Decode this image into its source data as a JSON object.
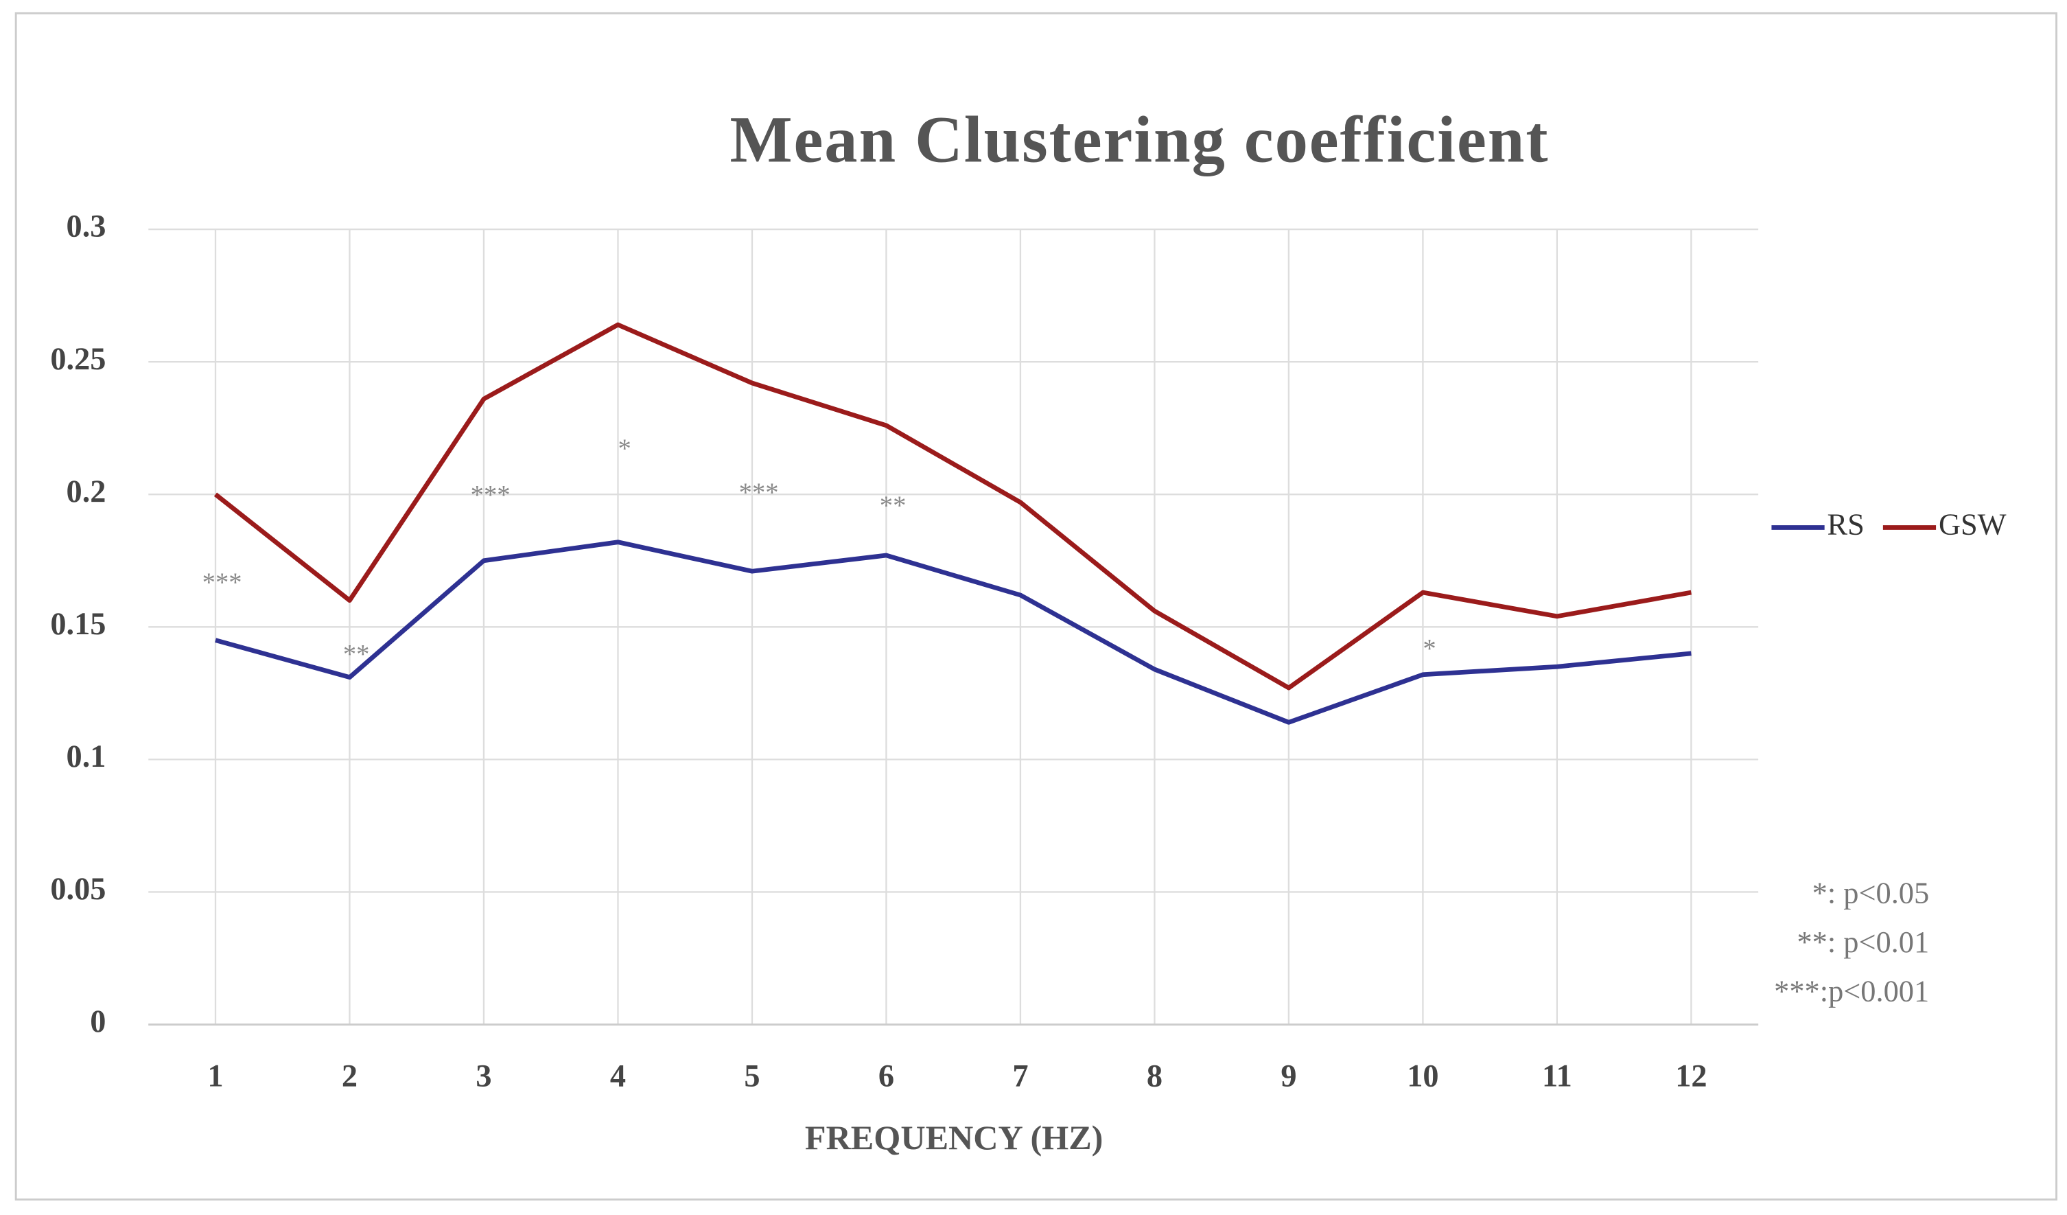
{
  "chart_data": {
    "type": "line",
    "title": "Mean Clustering coefficient",
    "x_label": "FREQUENCY (HZ)",
    "categories": [
      "1",
      "2",
      "3",
      "4",
      "5",
      "6",
      "7",
      "8",
      "9",
      "10",
      "11",
      "12"
    ],
    "series": [
      {
        "name": "RS",
        "color": "#2e3192",
        "values": [
          0.145,
          0.131,
          0.175,
          0.182,
          0.171,
          0.177,
          0.162,
          0.134,
          0.114,
          0.132,
          0.135,
          0.14
        ]
      },
      {
        "name": "GSW",
        "color": "#9b1b1b",
        "values": [
          0.2,
          0.16,
          0.236,
          0.264,
          0.242,
          0.226,
          0.197,
          0.156,
          0.127,
          0.163,
          0.154,
          0.163
        ]
      }
    ],
    "ylim": [
      0,
      0.3
    ],
    "yticks": [
      0,
      0.05,
      0.1,
      0.15,
      0.2,
      0.25,
      0.3
    ],
    "grid": true,
    "legend": "right",
    "annotations": [
      {
        "category": "1",
        "text": "***"
      },
      {
        "category": "2",
        "text": "**"
      },
      {
        "category": "3",
        "text": "***"
      },
      {
        "category": "4",
        "text": "*"
      },
      {
        "category": "5",
        "text": "***"
      },
      {
        "category": "6",
        "text": "**"
      },
      {
        "category": "10",
        "text": "*"
      }
    ],
    "notes": [
      "*: p<0.05",
      "**: p<0.01",
      "***:p<0.001"
    ]
  }
}
